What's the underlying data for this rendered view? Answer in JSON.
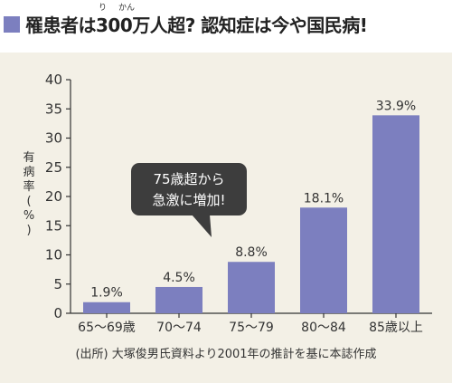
{
  "title": {
    "ruby": [
      "り",
      "かん"
    ],
    "text": "罹患者は300万人超? 認知症は今や国民病!"
  },
  "callout": [
    "75歳超から",
    "急激に増加!"
  ],
  "source": "(出所) 大塚俊男氏資料より2001年の推計を基に本誌作成",
  "colors": {
    "bar": "#7c7fbf",
    "panel": "#f3f0e6",
    "callout": "#3d3d3d"
  },
  "chart_data": {
    "type": "bar",
    "categories": [
      "65〜69歳",
      "70〜74",
      "75〜79",
      "80〜84",
      "85歳以上"
    ],
    "values": [
      1.9,
      4.5,
      8.8,
      18.1,
      33.9
    ],
    "value_labels": [
      "1.9%",
      "4.5%",
      "8.8%",
      "18.1%",
      "33.9%"
    ],
    "ylabel": "有病率(%)",
    "ylim": [
      0,
      40
    ],
    "yticks": [
      0,
      5,
      10,
      15,
      20,
      25,
      30,
      35,
      40
    ],
    "grid": false
  }
}
